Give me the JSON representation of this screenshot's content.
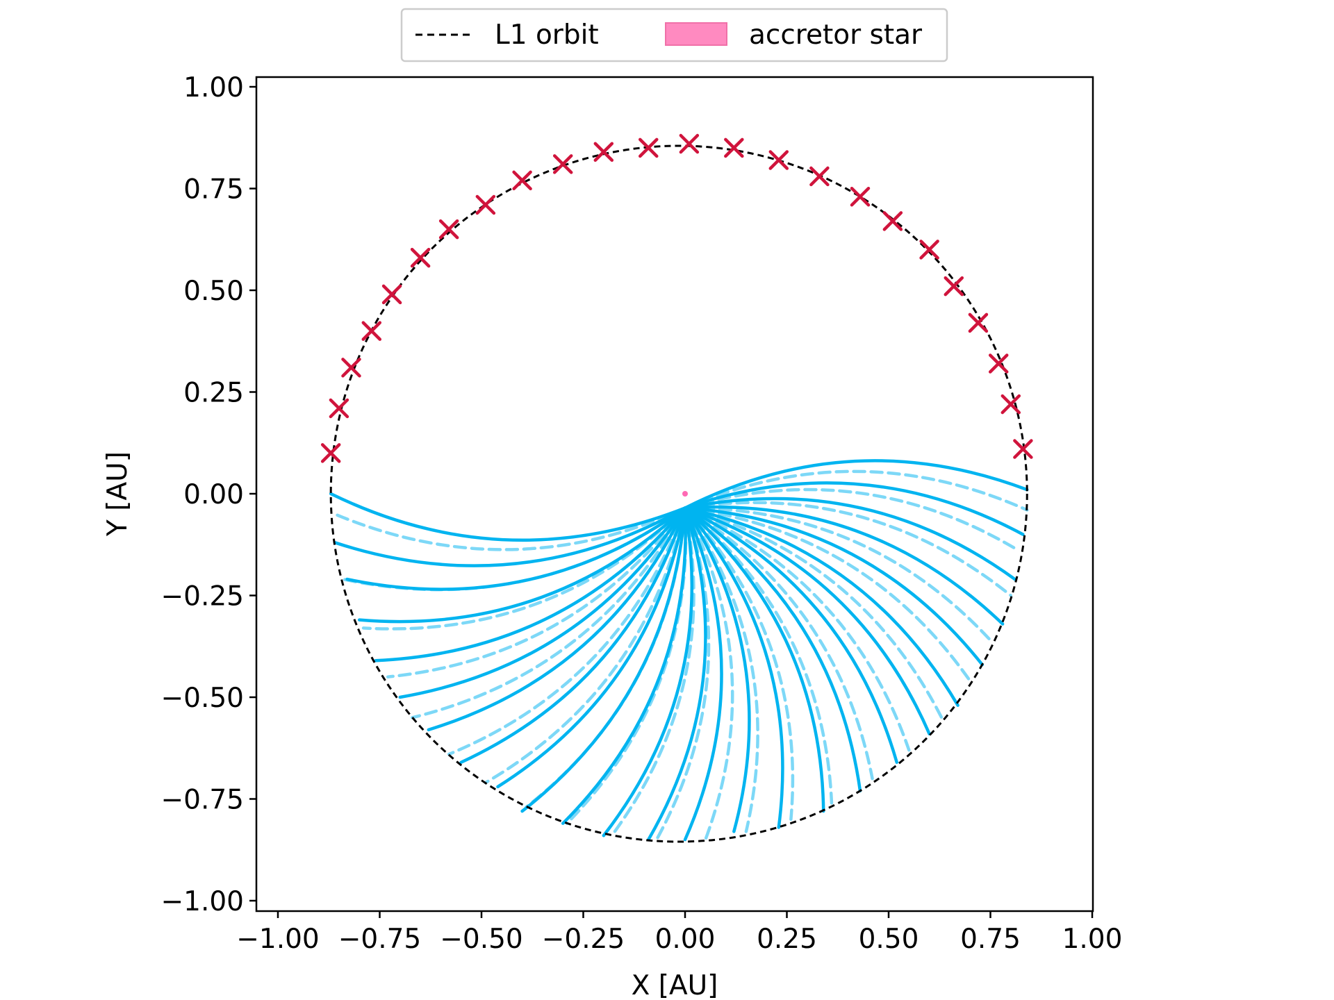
{
  "chart_data": {
    "type": "line",
    "xlabel": "X [AU]",
    "ylabel": "Y [AU]",
    "xlim": [
      -1.05,
      1.0
    ],
    "ylim": [
      -1.05,
      1.05
    ],
    "x_ticks": [
      "−1.00",
      "−0.75",
      "−0.50",
      "−0.25",
      "0.00",
      "0.25",
      "0.50",
      "0.75",
      "1.00"
    ],
    "y_ticks": [
      "1.00",
      "0.75",
      "0.50",
      "0.25",
      "0.00",
      "−0.25",
      "−0.50",
      "−0.75",
      "−1.00"
    ],
    "x_tick_values": [
      -1.0,
      -0.75,
      -0.5,
      -0.25,
      0.0,
      0.25,
      0.5,
      0.75,
      1.0
    ],
    "y_tick_values": [
      1.0,
      0.75,
      0.5,
      0.25,
      0.0,
      -0.25,
      -0.5,
      -0.75,
      -1.0
    ],
    "grid": false,
    "legend_position": "top-center, outside plot",
    "legend": [
      {
        "label": "L1 orbit",
        "style": "dashed-line",
        "color": "#000000"
      },
      {
        "label": "accretor star",
        "style": "filled-patch",
        "color": "#ff8ac0"
      }
    ],
    "l1_orbit": {
      "center": [
        -0.015,
        0.0
      ],
      "radius": 0.855
    },
    "accretor_star": {
      "x": 0.0,
      "y": 0.0,
      "color": "#ff69b4"
    },
    "launch_markers": {
      "marker": "x",
      "color": "#d0143c",
      "points": [
        [
          -0.87,
          0.1
        ],
        [
          -0.85,
          0.21
        ],
        [
          -0.82,
          0.31
        ],
        [
          -0.77,
          0.4
        ],
        [
          -0.72,
          0.49
        ],
        [
          -0.65,
          0.58
        ],
        [
          -0.58,
          0.65
        ],
        [
          -0.49,
          0.71
        ],
        [
          -0.4,
          0.77
        ],
        [
          -0.3,
          0.81
        ],
        [
          -0.2,
          0.84
        ],
        [
          -0.09,
          0.85
        ],
        [
          0.01,
          0.86
        ],
        [
          0.12,
          0.85
        ],
        [
          0.23,
          0.82
        ],
        [
          0.33,
          0.78
        ],
        [
          0.43,
          0.73
        ],
        [
          0.51,
          0.67
        ],
        [
          0.6,
          0.6
        ],
        [
          0.66,
          0.51
        ],
        [
          0.72,
          0.42
        ],
        [
          0.77,
          0.32
        ],
        [
          0.8,
          0.22
        ],
        [
          0.83,
          0.11
        ]
      ]
    },
    "stream_end_points_solid": [
      [
        -0.87,
        0.0
      ],
      [
        -0.86,
        -0.12
      ],
      [
        -0.83,
        -0.21
      ],
      [
        -0.8,
        -0.31
      ],
      [
        -0.76,
        -0.41
      ],
      [
        -0.7,
        -0.5
      ],
      [
        -0.63,
        -0.58
      ],
      [
        -0.55,
        -0.66
      ],
      [
        -0.46,
        -0.72
      ],
      [
        -0.4,
        -0.78
      ],
      [
        -0.3,
        -0.81
      ],
      [
        -0.2,
        -0.84
      ],
      [
        -0.09,
        -0.85
      ],
      [
        0.0,
        -0.85
      ],
      [
        0.12,
        -0.83
      ],
      [
        0.23,
        -0.82
      ],
      [
        0.34,
        -0.78
      ],
      [
        0.43,
        -0.73
      ],
      [
        0.52,
        -0.66
      ],
      [
        0.6,
        -0.59
      ],
      [
        0.67,
        -0.52
      ],
      [
        0.73,
        -0.42
      ],
      [
        0.78,
        -0.32
      ],
      [
        0.81,
        -0.21
      ],
      [
        0.83,
        -0.1
      ],
      [
        0.84,
        0.01
      ]
    ],
    "stream_end_points_dashed": [
      [
        -0.86,
        -0.05
      ],
      [
        -0.84,
        -0.21
      ],
      [
        -0.79,
        -0.33
      ],
      [
        -0.73,
        -0.45
      ],
      [
        -0.67,
        -0.55
      ],
      [
        -0.58,
        -0.64
      ],
      [
        -0.49,
        -0.71
      ],
      [
        -0.39,
        -0.77
      ],
      [
        -0.29,
        -0.81
      ],
      [
        -0.18,
        -0.84
      ],
      [
        -0.07,
        -0.85
      ],
      [
        0.05,
        -0.85
      ],
      [
        0.15,
        -0.83
      ],
      [
        0.26,
        -0.8
      ],
      [
        0.36,
        -0.76
      ],
      [
        0.46,
        -0.7
      ],
      [
        0.55,
        -0.63
      ],
      [
        0.63,
        -0.55
      ],
      [
        0.7,
        -0.46
      ],
      [
        0.75,
        -0.36
      ],
      [
        0.8,
        -0.25
      ],
      [
        0.82,
        -0.14
      ],
      [
        0.84,
        -0.04
      ]
    ],
    "colors": {
      "stream_solid": "#00b4f0",
      "stream_dashed": "#7dd8f7",
      "orbit": "#000000"
    }
  }
}
